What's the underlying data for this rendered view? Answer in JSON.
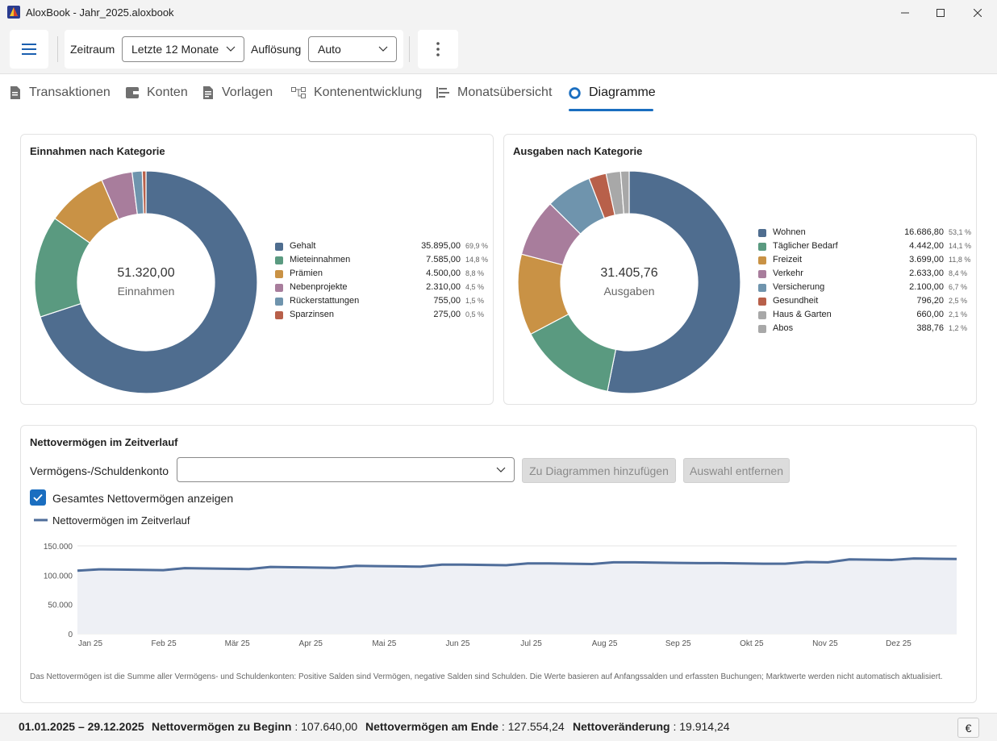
{
  "window": {
    "title": "AloxBook - Jahr_2025.aloxbook",
    "controls": [
      "minimize-icon",
      "maximize-icon",
      "close-icon"
    ]
  },
  "toolbar": {
    "zeitraum_label": "Zeitraum",
    "zeitraum_value": "Letzte 12 Monate",
    "aufloesung_label": "Auflösung",
    "aufloesung_value": "Auto"
  },
  "tabs": [
    {
      "label": "Transaktionen",
      "icon": "document-icon",
      "active": false
    },
    {
      "label": "Konten",
      "icon": "wallet-icon",
      "active": false
    },
    {
      "label": "Vorlagen",
      "icon": "template-icon",
      "active": false
    },
    {
      "label": "Kontenentwicklung",
      "icon": "flow-icon",
      "active": false
    },
    {
      "label": "Monatsübersicht",
      "icon": "list-icon",
      "active": false
    },
    {
      "label": "Diagramme",
      "icon": "radio-chart-icon",
      "active": true
    }
  ],
  "income": {
    "title": "Einnahmen nach Kategorie",
    "total": "51.320,00",
    "total_label": "Einnahmen",
    "items": [
      {
        "name": "Gehalt",
        "value": "35.895,00",
        "pct": "69,9 %",
        "color": "#4f6d8f"
      },
      {
        "name": "Mieteinnahmen",
        "value": "7.585,00",
        "pct": "14,8 %",
        "color": "#5a9a80"
      },
      {
        "name": "Prämien",
        "value": "4.500,00",
        "pct": "8,8 %",
        "color": "#c99245"
      },
      {
        "name": "Nebenprojekte",
        "value": "2.310,00",
        "pct": "4,5 %",
        "color": "#a87d9c"
      },
      {
        "name": "Rückerstattungen",
        "value": "755,00",
        "pct": "1,5 %",
        "color": "#6f94ad"
      },
      {
        "name": "Sparzinsen",
        "value": "275,00",
        "pct": "0,5 %",
        "color": "#b8604a"
      }
    ]
  },
  "expenses": {
    "title": "Ausgaben nach Kategorie",
    "total": "31.405,76",
    "total_label": "Ausgaben",
    "items": [
      {
        "name": "Wohnen",
        "value": "16.686,80",
        "pct": "53,1 %",
        "color": "#4f6d8f"
      },
      {
        "name": "Täglicher Bedarf",
        "value": "4.442,00",
        "pct": "14,1 %",
        "color": "#5a9a80"
      },
      {
        "name": "Freizeit",
        "value": "3.699,00",
        "pct": "11,8 %",
        "color": "#c99245"
      },
      {
        "name": "Verkehr",
        "value": "2.633,00",
        "pct": "8,4 %",
        "color": "#a87d9c"
      },
      {
        "name": "Versicherung",
        "value": "2.100,00",
        "pct": "6,7 %",
        "color": "#6f94ad"
      },
      {
        "name": "Gesundheit",
        "value": "796,20",
        "pct": "2,5 %",
        "color": "#b8604a"
      },
      {
        "name": "Haus & Garten",
        "value": "660,00",
        "pct": "2,1 %",
        "color": "#a8a8a8"
      },
      {
        "name": "Abos",
        "value": "388,76",
        "pct": "1,2 %",
        "color": "#a8a8a8"
      }
    ]
  },
  "networth": {
    "title": "Nettovermögen im Zeitverlauf",
    "account_label": "Vermögens-/Schuldenkonto",
    "account_value": "",
    "add_button": "Zu Diagrammen hinzufügen",
    "remove_button": "Auswahl entfernen",
    "checkbox_label": "Gesamtes Nettovermögen anzeigen",
    "checkbox_checked": true,
    "footnote": "Das Nettovermögen ist die Summe aller Vermögens- und Schuldenkonten: Positive Salden sind Vermögen, negative Salden sind Schulden. Die Werte basieren auf Anfangssalden und erfassten Buchungen; Marktwerte werden nicht automatisch aktualisiert."
  },
  "chart_data": [
    {
      "type": "pie",
      "title": "Einnahmen nach Kategorie",
      "categories": [
        "Gehalt",
        "Mieteinnahmen",
        "Prämien",
        "Nebenprojekte",
        "Rückerstattungen",
        "Sparzinsen"
      ],
      "values": [
        35895.0,
        7585.0,
        4500.0,
        2310.0,
        755.0,
        275.0
      ],
      "colors": [
        "#4f6d8f",
        "#5a9a80",
        "#c99245",
        "#a87d9c",
        "#6f94ad",
        "#b8604a"
      ]
    },
    {
      "type": "pie",
      "title": "Ausgaben nach Kategorie",
      "categories": [
        "Wohnen",
        "Täglicher Bedarf",
        "Freizeit",
        "Verkehr",
        "Versicherung",
        "Gesundheit",
        "Haus & Garten",
        "Abos"
      ],
      "values": [
        16686.8,
        4442.0,
        3699.0,
        2633.0,
        2100.0,
        796.2,
        660.0,
        388.76
      ],
      "colors": [
        "#4f6d8f",
        "#5a9a80",
        "#c99245",
        "#a87d9c",
        "#6f94ad",
        "#b8604a",
        "#a8a8a8",
        "#a8a8a8"
      ]
    },
    {
      "type": "area",
      "legend": "Nettovermögen im Zeitverlauf",
      "legend_position": "top-left",
      "color": "#4f6d9a",
      "fill": "#eef0f5",
      "grid": true,
      "ylim": [
        0,
        150000
      ],
      "yticks": [
        0,
        50000,
        100000,
        150000
      ],
      "ytick_labels": [
        "0",
        "50.000",
        "100.000",
        "150.000"
      ],
      "xtick_labels": [
        "Jan 25",
        "Feb 25",
        "Mär 25",
        "Apr 25",
        "Mai 25",
        "Jun 25",
        "Jul 25",
        "Aug 25",
        "Sep 25",
        "Okt 25",
        "Nov 25",
        "Dez 25"
      ],
      "values": [
        107640,
        110000,
        109500,
        109000,
        108500,
        112000,
        111500,
        111000,
        110500,
        114000,
        113500,
        113000,
        112500,
        116000,
        115500,
        115000,
        114500,
        118000,
        118000,
        117500,
        117000,
        120000,
        120000,
        119500,
        119000,
        122000,
        122000,
        121500,
        121000,
        120500,
        120500,
        120000,
        119500,
        119500,
        122500,
        122000,
        127000,
        126500,
        126000,
        128500,
        128000,
        127554
      ]
    }
  ],
  "status": {
    "range": "01.01.2025 – 29.12.2025",
    "start_label": "Nettovermögen zu Beginn",
    "start_value": "107.640,00",
    "end_label": "Nettovermögen am Ende",
    "end_value": "127.554,24",
    "change_label": "Nettoveränderung",
    "change_value": "19.914,24",
    "currency": "€"
  }
}
